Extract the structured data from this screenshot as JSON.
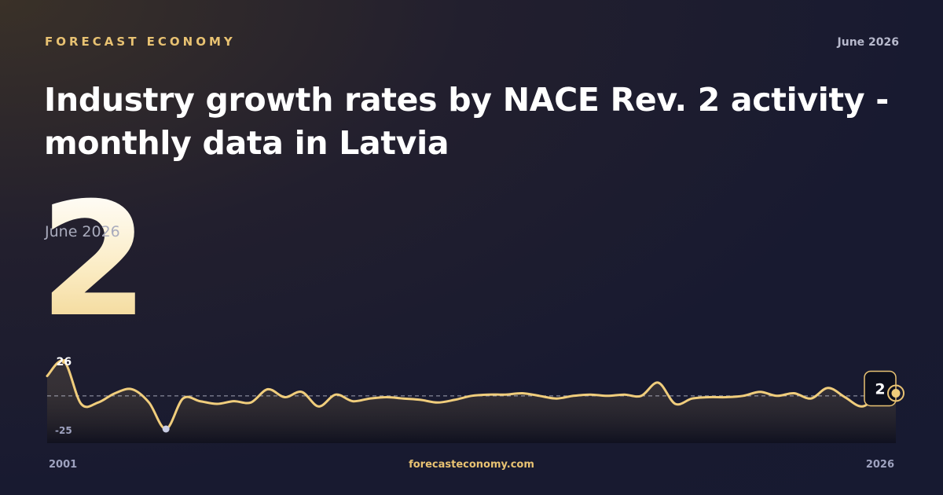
{
  "header": {
    "brand": "FORECAST ECONOMY",
    "date": "June 2026"
  },
  "title": "Industry growth rates by NACE Rev. 2 activity - monthly data in Latvia",
  "highlight": {
    "value": "2",
    "date": "June 2026"
  },
  "footer": {
    "site": "forecasteconomy.com"
  },
  "colors": {
    "accent": "#e8c272",
    "line": "#f0cd7c",
    "min_marker": "#c9cde4",
    "zero_line": "#cfd2e0"
  },
  "chart_data": {
    "type": "line",
    "title": "",
    "xlabel": "",
    "ylabel": "",
    "x_start_label": "2001",
    "x_end_label": "2026",
    "x": [
      2001.0,
      2001.5,
      2002.0,
      2002.5,
      2003.0,
      2003.5,
      2004.0,
      2004.5,
      2005.0,
      2005.5,
      2006.0,
      2006.5,
      2007.0,
      2007.5,
      2008.0,
      2008.5,
      2009.0,
      2009.5,
      2010.0,
      2010.5,
      2011.0,
      2011.5,
      2012.0,
      2012.5,
      2013.0,
      2013.5,
      2014.0,
      2014.5,
      2015.0,
      2015.5,
      2016.0,
      2016.5,
      2017.0,
      2017.5,
      2018.0,
      2018.5,
      2019.0,
      2019.5,
      2020.0,
      2020.5,
      2021.0,
      2021.5,
      2022.0,
      2022.5,
      2023.0,
      2023.5,
      2024.0,
      2024.5,
      2025.0,
      2025.5,
      2026.0
    ],
    "y": [
      15,
      26,
      -6,
      -5,
      2,
      5,
      -5,
      -25,
      -2,
      -4,
      -6,
      -4,
      -5,
      5,
      -1,
      3,
      -8,
      1,
      -4,
      -2,
      -1,
      -2,
      -3,
      -5,
      -3,
      0,
      1,
      1,
      2,
      0,
      -2,
      0,
      1,
      0,
      1,
      0,
      10,
      -6,
      -2,
      -1,
      -1,
      0,
      3,
      0,
      2,
      -2,
      6,
      -1,
      -8,
      0,
      2
    ],
    "min_label": "-25",
    "max_label": "26",
    "last_label": "2",
    "ylim": [
      -25,
      26
    ],
    "zero_line": true,
    "grid": false,
    "legend": "none"
  }
}
